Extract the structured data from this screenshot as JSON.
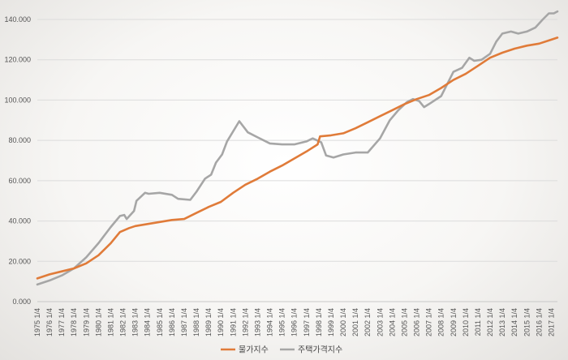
{
  "chart_data": {
    "type": "line",
    "ylim": [
      0,
      140
    ],
    "yticks": [
      0,
      20,
      40,
      60,
      80,
      100,
      120,
      140
    ],
    "ytick_labels": [
      "0.000",
      "20.000",
      "40.000",
      "60.000",
      "80.000",
      "100.000",
      "120.000",
      "140.000"
    ],
    "x_start": 1975,
    "x_end": 2017.5,
    "x_labels": [
      "1975 1/4",
      "1976 1/4",
      "1977 1/4",
      "1978 1/4",
      "1979 1/4",
      "1980 1/4",
      "1981 1/4",
      "1982 1/4",
      "1983 1/4",
      "1984 1/4",
      "1985 1/4",
      "1986 1/4",
      "1987 1/4",
      "1988 1/4",
      "1989 1/4",
      "1990 1/4",
      "1991 1/4",
      "1992 1/4",
      "1993 1/4",
      "1994 1/4",
      "1995 1/4",
      "1996 1/4",
      "1997 1/4",
      "1998 1/4",
      "1999 1/4",
      "2000 1/4",
      "2001 1/4",
      "2002 1/4",
      "2003 1/4",
      "2004 1/4",
      "2005 1/4",
      "2006 1/4",
      "2007 1/4",
      "2008 1/4",
      "2009 1/4",
      "2010 1/4",
      "2011 1/4",
      "2012 1/4",
      "2013 1/4",
      "2014 1/4",
      "2015 1/4",
      "2016 1/4",
      "2017 1/4"
    ],
    "grid": true,
    "legend_position": "bottom",
    "series": [
      {
        "name": "물가지수",
        "color": "#e07b39",
        "points": [
          [
            1975,
            11.5
          ],
          [
            1976,
            13.5
          ],
          [
            1977,
            15
          ],
          [
            1978,
            16.5
          ],
          [
            1979,
            19
          ],
          [
            1980,
            23
          ],
          [
            1981,
            29
          ],
          [
            1981.75,
            34.5
          ],
          [
            1982.5,
            36.5
          ],
          [
            1983,
            37.5
          ],
          [
            1984,
            38.5
          ],
          [
            1985,
            39.5
          ],
          [
            1986,
            40.5
          ],
          [
            1987,
            41
          ],
          [
            1988,
            44
          ],
          [
            1989,
            47
          ],
          [
            1990,
            49.5
          ],
          [
            1991,
            54
          ],
          [
            1992,
            58
          ],
          [
            1993,
            61
          ],
          [
            1994,
            64.5
          ],
          [
            1995,
            67.5
          ],
          [
            1996,
            71
          ],
          [
            1997,
            74.5
          ],
          [
            1997.9,
            78
          ],
          [
            1998.1,
            82
          ],
          [
            1999,
            82.5
          ],
          [
            2000,
            83.5
          ],
          [
            2001,
            86
          ],
          [
            2002,
            89
          ],
          [
            2003,
            92
          ],
          [
            2004,
            95
          ],
          [
            2005,
            98
          ],
          [
            2006,
            100.5
          ],
          [
            2007,
            102.5
          ],
          [
            2008,
            106
          ],
          [
            2009,
            110
          ],
          [
            2010,
            113
          ],
          [
            2011,
            117
          ],
          [
            2012,
            121
          ],
          [
            2013,
            123.5
          ],
          [
            2014,
            125.5
          ],
          [
            2015,
            127
          ],
          [
            2016,
            128
          ],
          [
            2017,
            130
          ],
          [
            2017.5,
            131
          ]
        ]
      },
      {
        "name": "주택가격지수",
        "color": "#a6a6a6",
        "points": [
          [
            1975,
            8.5
          ],
          [
            1976,
            10.5
          ],
          [
            1977,
            13
          ],
          [
            1978,
            16.5
          ],
          [
            1979,
            22
          ],
          [
            1980,
            29
          ],
          [
            1981,
            37
          ],
          [
            1981.75,
            42.5
          ],
          [
            1982.1,
            43
          ],
          [
            1982.3,
            41
          ],
          [
            1982.9,
            45
          ],
          [
            1983.1,
            50
          ],
          [
            1983.8,
            54
          ],
          [
            1984.1,
            53.5
          ],
          [
            1985,
            54
          ],
          [
            1986,
            53
          ],
          [
            1986.5,
            51
          ],
          [
            1987.5,
            50.5
          ],
          [
            1988,
            54.5
          ],
          [
            1988.7,
            61
          ],
          [
            1989.2,
            63
          ],
          [
            1989.6,
            69
          ],
          [
            1990.1,
            73
          ],
          [
            1990.5,
            79.5
          ],
          [
            1991.5,
            89.5
          ],
          [
            1992.2,
            84
          ],
          [
            1993,
            81.5
          ],
          [
            1994,
            78.5
          ],
          [
            1995,
            78
          ],
          [
            1996,
            78
          ],
          [
            1997,
            79.5
          ],
          [
            1997.5,
            81
          ],
          [
            1998.2,
            79
          ],
          [
            1998.6,
            72.5
          ],
          [
            1999.2,
            71.5
          ],
          [
            2000,
            73
          ],
          [
            2001,
            74
          ],
          [
            2002,
            74
          ],
          [
            2003,
            81
          ],
          [
            2003.8,
            90
          ],
          [
            2004.5,
            95
          ],
          [
            2005.2,
            99
          ],
          [
            2005.7,
            100.5
          ],
          [
            2006.2,
            99.5
          ],
          [
            2006.6,
            96.5
          ],
          [
            2007,
            98
          ],
          [
            2008,
            102
          ],
          [
            2009,
            114
          ],
          [
            2009.7,
            116
          ],
          [
            2010.3,
            121
          ],
          [
            2010.7,
            119.5
          ],
          [
            2011.3,
            120
          ],
          [
            2012,
            123
          ],
          [
            2012.5,
            129
          ],
          [
            2013,
            133
          ],
          [
            2013.7,
            134
          ],
          [
            2014.3,
            133
          ],
          [
            2015,
            134
          ],
          [
            2015.7,
            136
          ],
          [
            2016.3,
            140
          ],
          [
            2016.8,
            143
          ],
          [
            2017.2,
            143
          ],
          [
            2017.5,
            144
          ]
        ]
      }
    ]
  }
}
